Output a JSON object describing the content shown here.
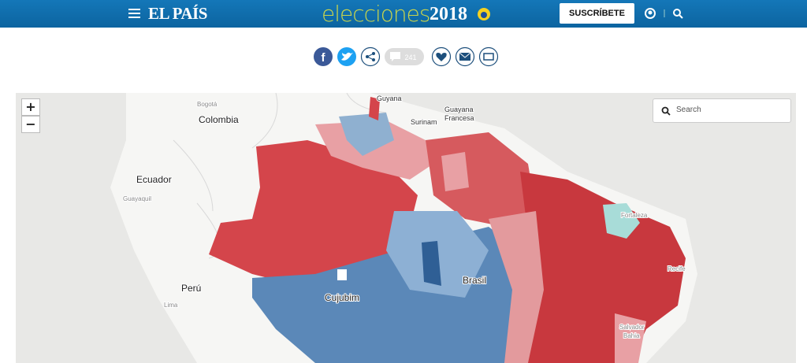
{
  "header": {
    "brand": "EL PAÍS",
    "section": "elecciones",
    "year": "2018",
    "subscribe": "SUSCRÍBETE"
  },
  "share": {
    "comment_count": "241"
  },
  "map": {
    "zoom_in": "+",
    "zoom_out": "−",
    "search_placeholder": "Search",
    "labels": [
      "Bogotá",
      "Colombia",
      "Guyana",
      "Surinam",
      "Guayana",
      "Francesa",
      "Ecuador",
      "Guayaquil",
      "Fortaleza",
      "Perú",
      "Lima",
      "Cujubim",
      "Brasil",
      "Recife",
      "Salvador",
      "Bahia"
    ]
  }
}
